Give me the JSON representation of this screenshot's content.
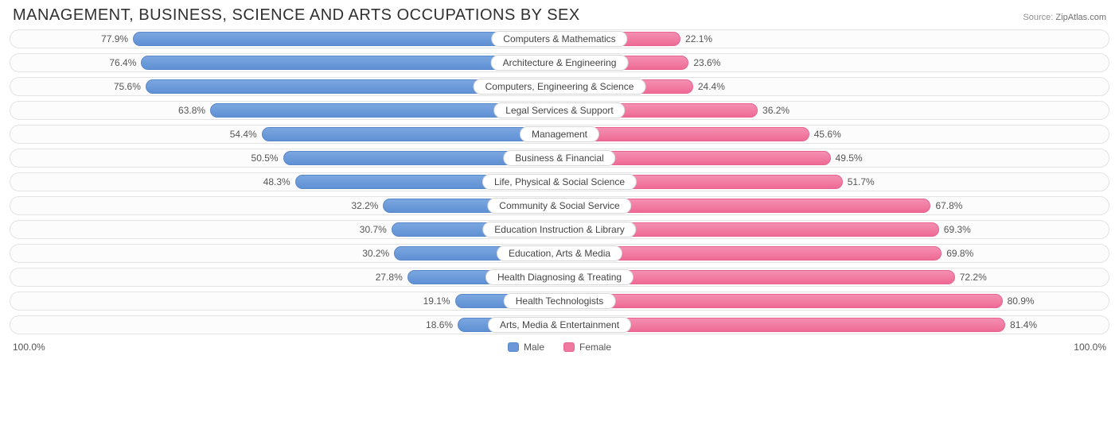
{
  "title": "MANAGEMENT, BUSINESS, SCIENCE AND ARTS OCCUPATIONS BY SEX",
  "source_prefix": "Source:",
  "source_name": "ZipAtlas.com",
  "axis_left": "100.0%",
  "axis_right": "100.0%",
  "legend": {
    "male": "Male",
    "female": "Female"
  },
  "colors": {
    "male_bar": "#6a97d8",
    "female_bar": "#ef7aa0",
    "row_border": "#e3e3e3",
    "pill_border": "#d8d8d8",
    "text": "#555555",
    "title_text": "#303030",
    "bg": "#ffffff"
  },
  "chart": {
    "type": "diverging-bar",
    "xlim": [
      0,
      100
    ],
    "rows": [
      {
        "label": "Computers & Mathematics",
        "male": 77.9,
        "female": 22.1
      },
      {
        "label": "Architecture & Engineering",
        "male": 76.4,
        "female": 23.6
      },
      {
        "label": "Computers, Engineering & Science",
        "male": 75.6,
        "female": 24.4
      },
      {
        "label": "Legal Services & Support",
        "male": 63.8,
        "female": 36.2
      },
      {
        "label": "Management",
        "male": 54.4,
        "female": 45.6
      },
      {
        "label": "Business & Financial",
        "male": 50.5,
        "female": 49.5
      },
      {
        "label": "Life, Physical & Social Science",
        "male": 48.3,
        "female": 51.7
      },
      {
        "label": "Community & Social Service",
        "male": 32.2,
        "female": 67.8
      },
      {
        "label": "Education Instruction & Library",
        "male": 30.7,
        "female": 69.3
      },
      {
        "label": "Education, Arts & Media",
        "male": 30.2,
        "female": 69.8
      },
      {
        "label": "Health Diagnosing & Treating",
        "male": 27.8,
        "female": 72.2
      },
      {
        "label": "Health Technologists",
        "male": 19.1,
        "female": 80.9
      },
      {
        "label": "Arts, Media & Entertainment",
        "male": 18.6,
        "female": 81.4
      }
    ]
  }
}
